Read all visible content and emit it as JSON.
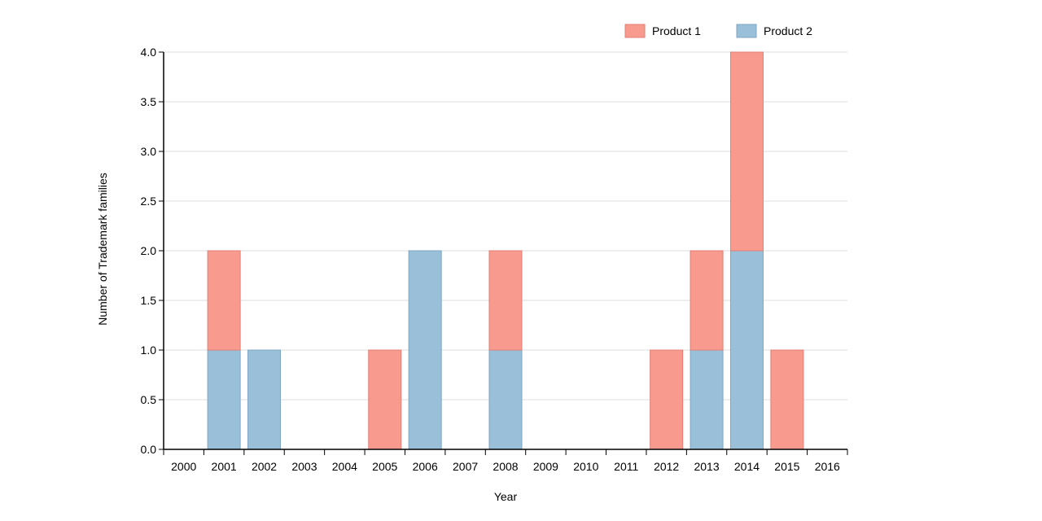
{
  "chart_data": {
    "type": "bar",
    "stacked": true,
    "categories": [
      "2000",
      "2001",
      "2002",
      "2003",
      "2004",
      "2005",
      "2006",
      "2007",
      "2008",
      "2009",
      "2010",
      "2011",
      "2012",
      "2013",
      "2014",
      "2015",
      "2016"
    ],
    "series": [
      {
        "name": "Product 2",
        "color": "#99bfd9",
        "stroke": "#7fa6c3",
        "values": [
          0,
          1,
          1,
          0,
          0,
          0,
          2,
          0,
          1,
          0,
          0,
          0,
          0,
          1,
          2,
          0,
          0
        ]
      },
      {
        "name": "Product 1",
        "color": "#f99a8f",
        "stroke": "#e07f75",
        "values": [
          0,
          1,
          0,
          0,
          0,
          1,
          0,
          0,
          1,
          0,
          0,
          0,
          1,
          1,
          2,
          1,
          0
        ]
      }
    ],
    "legend_order": [
      "Product 1",
      "Product 2"
    ],
    "legend_position": "top-right",
    "xlabel": "Year",
    "ylabel": "Number of Trademark families",
    "ylim": [
      0,
      4
    ],
    "yticks": [
      "0.0",
      "0.5",
      "1.0",
      "1.5",
      "2.0",
      "2.5",
      "3.0",
      "3.5",
      "4.0"
    ],
    "grid": true,
    "grid_color": "#dddddd"
  }
}
